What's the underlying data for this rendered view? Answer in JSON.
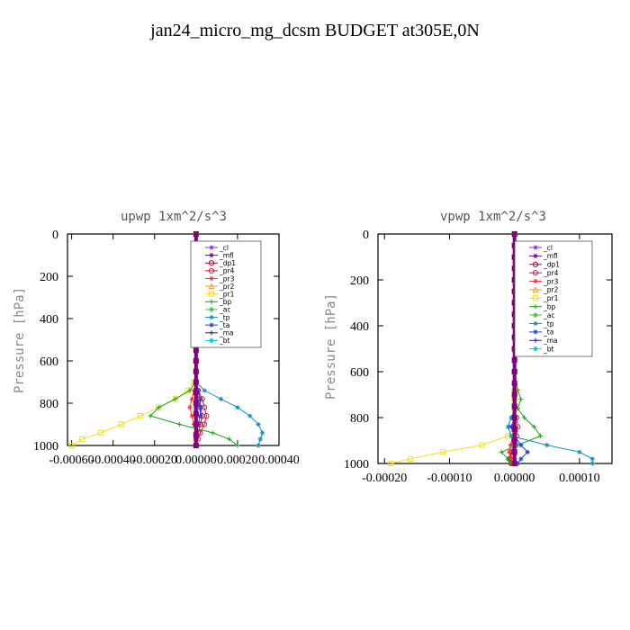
{
  "figure": {
    "title": "jan24_micro_mg_dcsm  BUDGET at305E,0N"
  },
  "colors": {
    "_cl": "#8a2be2",
    "_mfl": "#800080",
    "_dp1": "#b0003a",
    "_pr4": "#d01c3a",
    "_pr3": "#ff3030",
    "_pr2": "#f0a020",
    "_pr1": "#f0e020",
    "_bp": "#20a020",
    "_ac": "#40d040",
    "_tp": "#1090c0",
    "_ta": "#2040e0",
    "_ma": "#2020a0",
    "_bt": "#00d0d0"
  },
  "chart_data": [
    {
      "type": "line",
      "title": "upwp   1xm^2/s^3",
      "ylabel": "Pressure [hPa]",
      "xlabel": "",
      "xlim": [
        -0.00062,
        0.0004
      ],
      "ylim": [
        1000,
        0
      ],
      "xticks": [
        "-0.00060",
        "-0.00040",
        "-0.00020",
        "0.00000",
        "0.00020",
        "0.00040"
      ],
      "xtick_values": [
        -0.0006,
        -0.0004,
        -0.0002,
        0.0,
        0.0002,
        0.0004
      ],
      "yticks": [
        "0",
        "200",
        "400",
        "600",
        "800",
        "1000"
      ],
      "ytick_values": [
        0,
        200,
        400,
        600,
        800,
        1000
      ],
      "legend_position": "top-right",
      "legend": [
        "_cl",
        "_mfl",
        "_dp1",
        "_pr4",
        "_pr3",
        "_pr2",
        "_pr1",
        "_bp",
        "_ac",
        "_tp",
        "_ta",
        "_ma",
        "_bt"
      ],
      "y": [
        0,
        100,
        200,
        300,
        400,
        500,
        600,
        650,
        700,
        740,
        780,
        820,
        860,
        900,
        940,
        970,
        1000
      ],
      "series": [
        {
          "name": "_cl",
          "values": [
            0,
            0,
            0,
            0,
            0,
            0,
            0,
            0,
            0,
            0,
            0,
            0,
            0,
            0,
            0,
            0,
            0
          ]
        },
        {
          "name": "_mfl",
          "values": [
            0,
            0,
            0,
            0,
            0,
            0,
            0,
            0,
            0,
            0,
            0,
            0,
            0,
            0,
            0,
            0,
            0
          ]
        },
        {
          "name": "_dp1",
          "values": [
            0,
            0,
            0,
            0,
            0,
            0,
            0,
            0,
            0,
            0,
            1e-05,
            2e-05,
            3e-05,
            2e-05,
            1e-05,
            0,
            0
          ]
        },
        {
          "name": "_pr4",
          "values": [
            0,
            0,
            0,
            0,
            0,
            0,
            0,
            0,
            0,
            1e-05,
            3e-05,
            4e-05,
            5e-05,
            4e-05,
            2e-05,
            1e-05,
            0
          ]
        },
        {
          "name": "_pr3",
          "values": [
            0,
            0,
            0,
            0,
            0,
            0,
            0,
            0,
            0,
            -1e-05,
            -2e-05,
            -3e-05,
            -2e-05,
            -1e-05,
            0,
            0,
            0
          ]
        },
        {
          "name": "_pr2",
          "values": [
            0,
            0,
            0,
            0,
            0,
            0,
            0,
            0,
            0,
            0,
            0,
            0,
            0,
            0,
            0,
            0,
            0
          ]
        },
        {
          "name": "_pr1",
          "values": [
            0,
            0,
            0,
            0,
            0,
            0,
            0,
            0,
            -1e-05,
            -4e-05,
            -0.0001,
            -0.00018,
            -0.00027,
            -0.00036,
            -0.00046,
            -0.00055,
            -0.0006
          ]
        },
        {
          "name": "_bp",
          "values": [
            0,
            0,
            0,
            0,
            0,
            0,
            0,
            0,
            0,
            -3e-05,
            -0.0001,
            -0.00018,
            -0.00022,
            -8e-05,
            8e-05,
            0.00016,
            0.0002
          ]
        },
        {
          "name": "_ac",
          "values": [
            0,
            0,
            0,
            0,
            0,
            0,
            0,
            0,
            0,
            0,
            0,
            0,
            0,
            0,
            0,
            0,
            0
          ]
        },
        {
          "name": "_tp",
          "values": [
            0,
            0,
            0,
            0,
            0,
            0,
            0,
            0,
            0,
            4e-05,
            0.00012,
            0.0002,
            0.00026,
            0.0003,
            0.00032,
            0.00031,
            0.0003
          ]
        },
        {
          "name": "_ta",
          "values": [
            0,
            0,
            0,
            0,
            0,
            0,
            0,
            0,
            0,
            1e-05,
            2e-05,
            2e-05,
            2e-05,
            1e-05,
            0,
            0,
            0
          ]
        },
        {
          "name": "_ma",
          "values": [
            0,
            0,
            0,
            0,
            0,
            0,
            0,
            0,
            0,
            0,
            0,
            0,
            0,
            0,
            0,
            0,
            0
          ]
        },
        {
          "name": "_bt",
          "values": [
            0,
            0,
            0,
            0,
            0,
            0,
            0,
            0,
            0,
            0,
            0,
            0,
            0,
            0,
            0,
            0,
            0
          ]
        }
      ]
    },
    {
      "type": "line",
      "title": "vpwp   1xm^2/s^3",
      "ylabel": "Pressure [hPa]",
      "xlabel": "",
      "xlim": [
        -0.00021,
        0.00015
      ],
      "ylim": [
        1000,
        0
      ],
      "xticks": [
        "-0.00020",
        "-0.00010",
        "0.00000",
        "0.00010"
      ],
      "xtick_values": [
        -0.0002,
        -0.0001,
        0.0,
        0.0001
      ],
      "yticks": [
        "0",
        "200",
        "400",
        "600",
        "800",
        "1000"
      ],
      "ytick_values": [
        0,
        200,
        400,
        600,
        800,
        1000
      ],
      "legend_position": "top-right",
      "legend": [
        "_cl",
        "_mfl",
        "_dp1",
        "_pr4",
        "_pr3",
        "_pr2",
        "_pr1",
        "_bp",
        "_ac",
        "_tp",
        "_ta",
        "_ma",
        "_bt"
      ],
      "y": [
        0,
        100,
        200,
        250,
        300,
        400,
        500,
        600,
        680,
        720,
        760,
        800,
        840,
        880,
        920,
        950,
        980,
        1000
      ],
      "series": [
        {
          "name": "_cl",
          "values": [
            0,
            0,
            0,
            0,
            0,
            0,
            0,
            0,
            0,
            0,
            0,
            0,
            0,
            0,
            0,
            0,
            0,
            0
          ]
        },
        {
          "name": "_mfl",
          "values": [
            0,
            0,
            0,
            0,
            0,
            0,
            0,
            0,
            0,
            0,
            0,
            0,
            0,
            0,
            0,
            0,
            0,
            0
          ]
        },
        {
          "name": "_dp1",
          "values": [
            0,
            0,
            0,
            0,
            0,
            0,
            0,
            0,
            0,
            0,
            0,
            0,
            0,
            0,
            0,
            -5e-06,
            -8e-06,
            -5e-06
          ]
        },
        {
          "name": "_pr4",
          "values": [
            0,
            0,
            0,
            0,
            0,
            0,
            0,
            0,
            0,
            0,
            0,
            3e-06,
            5e-06,
            3e-06,
            0,
            -4e-06,
            -6e-06,
            -4e-06
          ]
        },
        {
          "name": "_pr3",
          "values": [
            0,
            0,
            0,
            0,
            0,
            0,
            0,
            0,
            0,
            0,
            0,
            0,
            0,
            -3e-06,
            -6e-06,
            -8e-06,
            -6e-06,
            -4e-06
          ]
        },
        {
          "name": "_pr2",
          "values": [
            0,
            0,
            2e-06,
            3e-06,
            2e-06,
            0,
            0,
            0,
            0,
            0,
            0,
            0,
            0,
            0,
            0,
            0,
            0,
            0
          ]
        },
        {
          "name": "_pr1",
          "values": [
            0,
            0,
            0,
            0,
            0,
            0,
            0,
            0,
            0,
            0,
            0,
            0,
            0,
            -1e-05,
            -5e-05,
            -0.00011,
            -0.00016,
            -0.00019
          ]
        },
        {
          "name": "_bp",
          "values": [
            0,
            0,
            0,
            0,
            0,
            0,
            0,
            0,
            5e-06,
            1e-05,
            5e-06,
            1.5e-05,
            3e-05,
            4e-05,
            5e-06,
            -2e-05,
            -1e-05,
            -5e-06
          ]
        },
        {
          "name": "_ac",
          "values": [
            0,
            0,
            3e-06,
            4e-06,
            3e-06,
            0,
            0,
            0,
            0,
            0,
            0,
            0,
            0,
            0,
            0,
            0,
            0,
            0
          ]
        },
        {
          "name": "_tp",
          "values": [
            0,
            0,
            0,
            0,
            0,
            0,
            0,
            0,
            0,
            0,
            0,
            -5e-06,
            -1e-05,
            -5e-06,
            5e-05,
            0.0001,
            0.00012,
            0.00012
          ]
        },
        {
          "name": "_ta",
          "values": [
            0,
            0,
            0,
            0,
            0,
            0,
            0,
            0,
            0,
            0,
            0,
            0,
            -5e-06,
            0,
            1e-05,
            2e-05,
            1e-05,
            5e-06
          ]
        },
        {
          "name": "_ma",
          "values": [
            0,
            0,
            0,
            0,
            0,
            0,
            0,
            0,
            0,
            0,
            0,
            0,
            0,
            0,
            0,
            0,
            0,
            0
          ]
        },
        {
          "name": "_bt",
          "values": [
            0,
            0,
            0,
            0,
            0,
            0,
            0,
            0,
            0,
            0,
            0,
            0,
            0,
            0,
            0,
            0,
            0,
            0
          ]
        }
      ]
    }
  ]
}
